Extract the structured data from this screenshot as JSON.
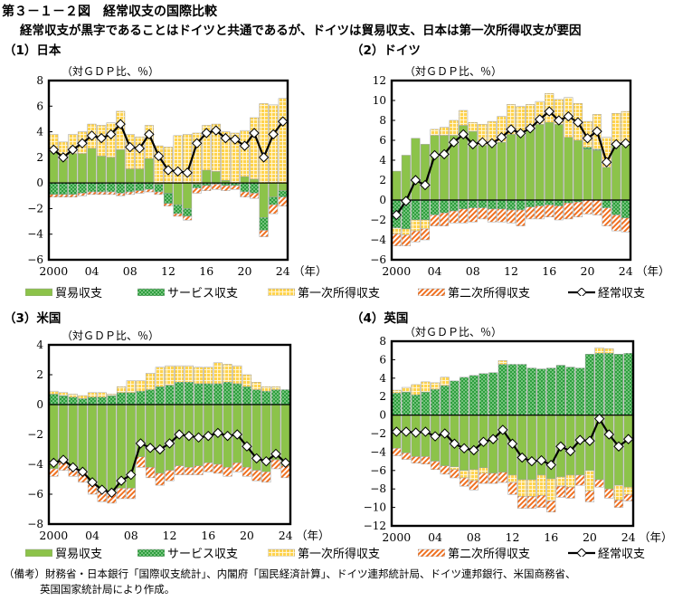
{
  "title": "第３－１－２図　経常収支の国際比較",
  "subtitle": "経常収支が黒字であることはドイツと共通であるが、ドイツは貿易収支、日本は第一次所得収支が要因",
  "colors": {
    "trade": "#8cc34a",
    "trade_edge": "#6f9e38",
    "services": "#2e9e3e",
    "services_dot": "#c8f0c8",
    "primary_income": "#ffd34d",
    "primary_grid": "#ffffff",
    "secondary_income": "#f07020",
    "current_line": "#000000",
    "marker_fill": "#ffffff"
  },
  "legend": [
    {
      "key": "trade",
      "label": "貿易収支",
      "icon": "green-solid-swatch"
    },
    {
      "key": "services",
      "label": "サービス収支",
      "icon": "green-dotted-swatch"
    },
    {
      "key": "primary_income",
      "label": "第一次所得収支",
      "icon": "yellow-grid-swatch"
    },
    {
      "key": "secondary_income",
      "label": "第二次所得収支",
      "icon": "orange-hatched-swatch"
    },
    {
      "key": "current",
      "label": "経常収支",
      "icon": "line-diamond-marker"
    }
  ],
  "notes": {
    "line1": "（備考）財務省・日本銀行「国際収支統計」、内閣府「国民経済計算」、ドイツ連邦統計局、ドイツ連邦銀行、米国商務省、",
    "line2": "英国国家統計局により作成。"
  },
  "chart_data": [
    {
      "id": "japan",
      "type": "bar",
      "stacked": true,
      "panel_title": "（1）日本",
      "unit_label": "（対ＧＤＰ比、％）",
      "xlabel": "（年）",
      "x": [
        2000,
        2001,
        2002,
        2003,
        2004,
        2005,
        2006,
        2007,
        2008,
        2009,
        2010,
        2011,
        2012,
        2013,
        2014,
        2015,
        2016,
        2017,
        2018,
        2019,
        2020,
        2021,
        2022,
        2023,
        2024
      ],
      "xticks": [
        "2000",
        "04",
        "08",
        "12",
        "16",
        "20",
        "24"
      ],
      "ylim": [
        -6,
        8
      ],
      "yticks": [
        -6,
        -4,
        -2,
        0,
        2,
        4,
        6,
        8
      ],
      "grid": false,
      "series": [
        {
          "name": "貿易収支",
          "key": "trade",
          "values": [
            2.4,
            1.8,
            2.3,
            2.3,
            2.7,
            2.1,
            2.0,
            2.6,
            1.1,
            1.1,
            1.9,
            -0.1,
            -0.8,
            -1.7,
            -2.0,
            -0.1,
            1.0,
            0.9,
            0.2,
            0.0,
            0.5,
            0.3,
            -2.7,
            -1.1,
            -0.6
          ]
        },
        {
          "name": "サービス収支",
          "key": "services",
          "values": [
            -0.9,
            -0.9,
            -0.9,
            -0.8,
            -0.7,
            -0.7,
            -0.7,
            -0.8,
            -0.7,
            -0.6,
            -0.5,
            -0.6,
            -0.8,
            -0.7,
            -0.6,
            -0.3,
            -0.2,
            -0.1,
            -0.2,
            -0.2,
            -0.7,
            -0.8,
            -1.0,
            -0.6,
            -0.5
          ]
        },
        {
          "name": "第一次所得収支",
          "key": "primary_income",
          "values": [
            1.4,
            1.4,
            1.5,
            1.7,
            1.9,
            2.4,
            2.7,
            3.0,
            2.7,
            2.5,
            2.6,
            2.9,
            2.8,
            3.7,
            3.8,
            3.9,
            3.5,
            3.7,
            3.8,
            3.9,
            3.6,
            4.8,
            6.2,
            6.1,
            6.6
          ]
        },
        {
          "name": "第二次所得収支",
          "key": "secondary_income",
          "values": [
            -0.2,
            -0.2,
            -0.2,
            -0.2,
            -0.2,
            -0.2,
            -0.2,
            -0.2,
            -0.2,
            -0.2,
            -0.2,
            -0.2,
            -0.2,
            -0.2,
            -0.3,
            -0.4,
            -0.4,
            -0.4,
            -0.4,
            -0.3,
            -0.4,
            -0.4,
            -0.5,
            -0.7,
            -0.7
          ]
        },
        {
          "name": "経常収支",
          "key": "current",
          "line": true,
          "values": [
            2.6,
            2.0,
            2.6,
            3.1,
            3.7,
            3.5,
            3.8,
            4.6,
            2.8,
            2.7,
            3.8,
            2.1,
            1.0,
            0.9,
            0.8,
            3.1,
            3.9,
            4.1,
            3.5,
            3.4,
            2.9,
            3.9,
            2.0,
            3.8,
            4.8
          ]
        }
      ]
    },
    {
      "id": "germany",
      "type": "bar",
      "stacked": true,
      "panel_title": "（2）ドイツ",
      "unit_label": "（対ＧＤＰ比、％）",
      "xlabel": "（年）",
      "x": [
        2000,
        2001,
        2002,
        2003,
        2004,
        2005,
        2006,
        2007,
        2008,
        2009,
        2010,
        2011,
        2012,
        2013,
        2014,
        2015,
        2016,
        2017,
        2018,
        2019,
        2020,
        2021,
        2022,
        2023,
        2024
      ],
      "xticks": [
        "2000",
        "04",
        "08",
        "12",
        "16",
        "20",
        "24"
      ],
      "ylim": [
        -6,
        12
      ],
      "yticks": [
        -6,
        -4,
        -2,
        0,
        2,
        4,
        6,
        8,
        10,
        12
      ],
      "grid": false,
      "series": [
        {
          "name": "貿易収支",
          "key": "trade",
          "values": [
            2.9,
            4.5,
            6.2,
            5.6,
            6.5,
            6.5,
            6.5,
            7.5,
            6.9,
            5.5,
            5.6,
            5.8,
            6.6,
            6.7,
            7.1,
            7.6,
            7.8,
            7.6,
            6.3,
            6.0,
            5.1,
            5.0,
            3.3,
            5.6,
            5.6
          ]
        },
        {
          "name": "サービス収支",
          "key": "services",
          "values": [
            -2.8,
            -2.9,
            -2.0,
            -2.0,
            -1.5,
            -1.3,
            -1.1,
            -0.9,
            -0.8,
            -0.8,
            -0.9,
            -0.9,
            -1.0,
            -1.0,
            -0.7,
            -0.6,
            -0.5,
            -0.6,
            -0.3,
            -0.2,
            0.2,
            0.1,
            -0.8,
            -1.5,
            -1.8
          ]
        },
        {
          "name": "第一次所得収支",
          "key": "primary_income",
          "values": [
            -0.6,
            -0.6,
            -1.1,
            -0.9,
            0.6,
            0.8,
            1.5,
            1.5,
            0.9,
            2.1,
            2.3,
            2.6,
            3.0,
            2.7,
            2.5,
            2.3,
            2.9,
            2.5,
            4.0,
            3.7,
            2.6,
            3.5,
            3.0,
            3.1,
            3.3
          ]
        },
        {
          "name": "第二次所得収支",
          "key": "secondary_income",
          "values": [
            -1.2,
            -1.1,
            -1.1,
            -1.1,
            -1.1,
            -1.3,
            -1.2,
            -1.4,
            -1.4,
            -1.1,
            -1.3,
            -1.3,
            -1.3,
            -1.6,
            -1.2,
            -1.3,
            -1.2,
            -1.4,
            -1.6,
            -1.5,
            -1.4,
            -1.5,
            -1.8,
            -1.6,
            -1.4
          ]
        },
        {
          "name": "経常収支",
          "key": "current",
          "line": true,
          "values": [
            -1.5,
            -0.1,
            2.0,
            1.5,
            4.5,
            4.6,
            5.8,
            6.6,
            5.6,
            5.8,
            5.7,
            6.3,
            7.1,
            6.7,
            7.2,
            8.1,
            8.9,
            8.0,
            8.4,
            7.8,
            6.2,
            6.9,
            3.8,
            5.6,
            5.7
          ]
        }
      ]
    },
    {
      "id": "usa",
      "type": "bar",
      "stacked": true,
      "panel_title": "（3）米国",
      "unit_label": "（対ＧＤＰ比、％）",
      "xlabel": "（年）",
      "x": [
        2000,
        2001,
        2002,
        2003,
        2004,
        2005,
        2006,
        2007,
        2008,
        2009,
        2010,
        2011,
        2012,
        2013,
        2014,
        2015,
        2016,
        2017,
        2018,
        2019,
        2020,
        2021,
        2022,
        2023,
        2024
      ],
      "xticks": [
        "2000",
        "04",
        "08",
        "12",
        "16",
        "20",
        "24"
      ],
      "ylim": [
        -8,
        4
      ],
      "yticks": [
        -8,
        -6,
        -4,
        -2,
        0,
        2,
        4
      ],
      "grid": false,
      "series": [
        {
          "name": "貿易収支",
          "key": "trade",
          "values": [
            -4.3,
            -3.9,
            -4.2,
            -4.6,
            -5.3,
            -5.8,
            -5.9,
            -5.6,
            -5.6,
            -3.5,
            -4.2,
            -4.6,
            -4.4,
            -4.1,
            -4.2,
            -4.1,
            -3.9,
            -4.0,
            -4.2,
            -3.9,
            -4.2,
            -4.4,
            -4.5,
            -3.7,
            -4.1
          ]
        },
        {
          "name": "サービス収支",
          "key": "services",
          "values": [
            0.7,
            0.6,
            0.5,
            0.4,
            0.5,
            0.5,
            0.6,
            0.8,
            0.8,
            0.9,
            1.0,
            1.2,
            1.3,
            1.5,
            1.5,
            1.4,
            1.4,
            1.4,
            1.5,
            1.4,
            1.2,
            1.0,
            0.9,
            1.0,
            1.0
          ]
        },
        {
          "name": "第一次所得収支",
          "key": "primary_income",
          "values": [
            0.2,
            0.2,
            0.2,
            0.2,
            0.3,
            0.3,
            0.1,
            0.4,
            0.8,
            0.7,
            1.1,
            1.3,
            1.3,
            1.1,
            1.1,
            1.1,
            1.1,
            1.4,
            1.2,
            1.2,
            0.8,
            0.5,
            0.3,
            0.2,
            0.0
          ]
        },
        {
          "name": "第二次所得収支",
          "key": "secondary_income",
          "values": [
            -0.5,
            -0.5,
            -0.6,
            -0.6,
            -0.7,
            -0.7,
            -0.7,
            -0.7,
            -0.7,
            -0.7,
            -0.7,
            -0.8,
            -0.7,
            -0.6,
            -0.5,
            -0.6,
            -0.6,
            -0.6,
            -0.6,
            -0.6,
            -0.6,
            -0.7,
            -0.7,
            -0.6,
            -0.8
          ]
        },
        {
          "name": "経常収支",
          "key": "current",
          "line": true,
          "values": [
            -3.9,
            -3.7,
            -4.2,
            -4.5,
            -5.2,
            -5.7,
            -5.9,
            -5.1,
            -4.7,
            -2.6,
            -2.9,
            -3.0,
            -2.6,
            -2.0,
            -2.1,
            -2.2,
            -2.1,
            -1.9,
            -2.1,
            -2.0,
            -2.8,
            -3.6,
            -3.8,
            -3.3,
            -3.9
          ]
        }
      ]
    },
    {
      "id": "uk",
      "type": "bar",
      "stacked": true,
      "panel_title": "（4）英国",
      "unit_label": "（対ＧＤＰ比、％）",
      "xlabel": "（年）",
      "x": [
        2000,
        2001,
        2002,
        2003,
        2004,
        2005,
        2006,
        2007,
        2008,
        2009,
        2010,
        2011,
        2012,
        2013,
        2014,
        2015,
        2016,
        2017,
        2018,
        2019,
        2020,
        2021,
        2022,
        2023,
        2024
      ],
      "xticks": [
        "2000",
        "04",
        "08",
        "12",
        "16",
        "20",
        "24"
      ],
      "ylim": [
        -12,
        8
      ],
      "yticks": [
        -12,
        -10,
        -8,
        -6,
        -4,
        -2,
        0,
        2,
        4,
        6,
        8
      ],
      "grid": false,
      "series": [
        {
          "name": "貿易収支",
          "key": "trade",
          "values": [
            -3.6,
            -4.1,
            -4.5,
            -4.5,
            -5.0,
            -5.5,
            -5.6,
            -6.0,
            -5.9,
            -5.7,
            -6.3,
            -6.2,
            -6.5,
            -7.0,
            -7.0,
            -6.5,
            -6.9,
            -6.7,
            -6.5,
            -6.5,
            -6.0,
            -7.0,
            -8.0,
            -7.6,
            -7.8
          ]
        },
        {
          "name": "サービス収支",
          "key": "services",
          "values": [
            2.4,
            2.5,
            2.2,
            2.5,
            2.8,
            3.2,
            3.7,
            4.1,
            4.3,
            4.5,
            4.6,
            5.5,
            5.5,
            5.5,
            5.1,
            5.0,
            5.1,
            5.4,
            5.2,
            5.1,
            6.6,
            6.7,
            6.7,
            6.6,
            6.7
          ]
        },
        {
          "name": "第一次所得収支",
          "key": "primary_income",
          "values": [
            0.3,
            0.5,
            1.1,
            1.1,
            0.7,
            0.9,
            -0.3,
            -0.8,
            -1.2,
            -0.6,
            0.0,
            0.4,
            -0.8,
            -1.8,
            -1.8,
            -2.2,
            -2.4,
            -1.0,
            -1.3,
            0.0,
            -2.2,
            0.6,
            0.5,
            -1.6,
            -0.8
          ]
        },
        {
          "name": "第二次所得収支",
          "key": "secondary_income",
          "values": [
            -0.8,
            -0.7,
            -0.7,
            -0.8,
            -0.9,
            -0.9,
            -0.9,
            -0.9,
            -1.0,
            -1.1,
            -1.1,
            -1.1,
            -1.3,
            -1.3,
            -1.3,
            -1.3,
            -1.2,
            -1.2,
            -1.2,
            -1.1,
            -1.2,
            -0.8,
            -1.0,
            -0.8,
            -0.7
          ]
        },
        {
          "name": "経常収支",
          "key": "current",
          "line": true,
          "values": [
            -1.8,
            -1.8,
            -1.9,
            -1.8,
            -2.3,
            -2.0,
            -3.1,
            -3.6,
            -3.8,
            -2.9,
            -2.6,
            -1.6,
            -3.1,
            -4.6,
            -5.0,
            -4.9,
            -5.4,
            -3.4,
            -3.9,
            -2.7,
            -2.8,
            -0.4,
            -2.1,
            -3.4,
            -2.6
          ]
        }
      ]
    }
  ]
}
